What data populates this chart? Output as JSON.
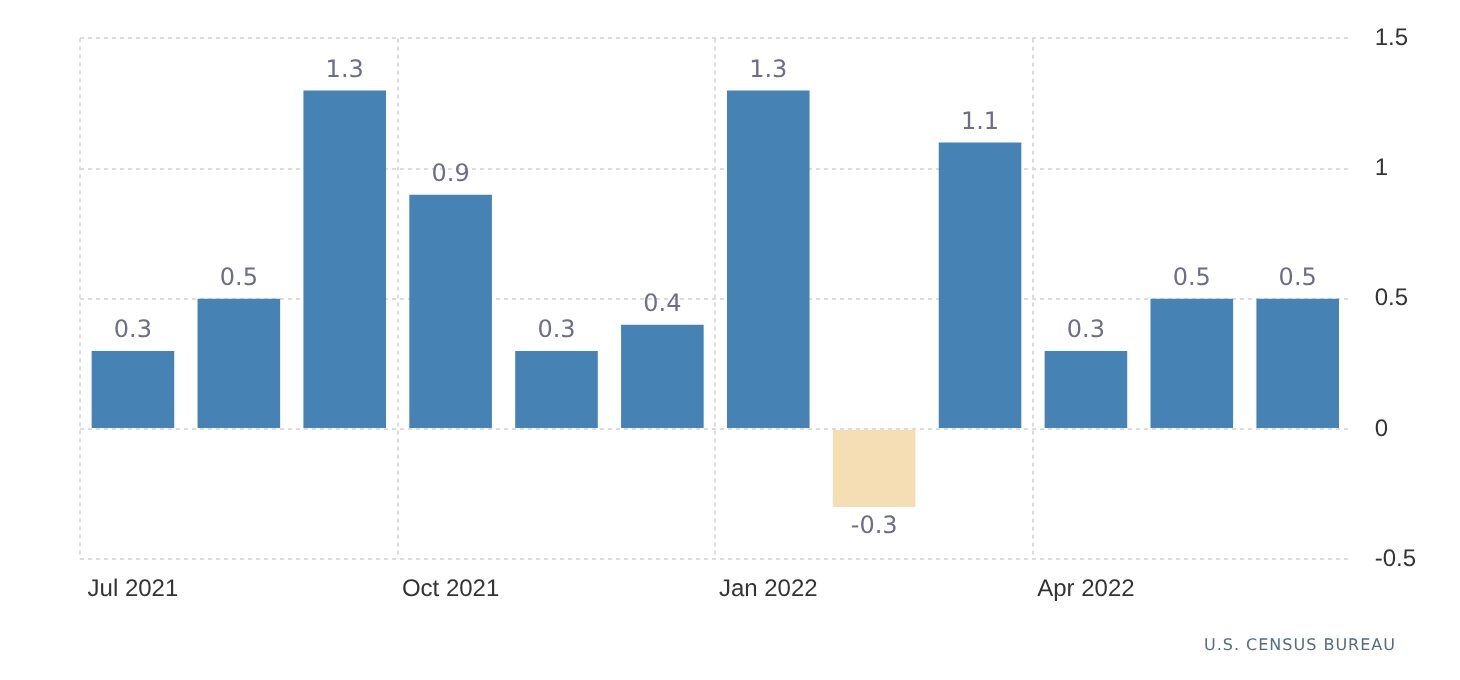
{
  "chart_data": {
    "type": "bar",
    "categories": [
      "Jul 2021",
      null,
      null,
      "Oct 2021",
      null,
      null,
      "Jan 2022",
      null,
      null,
      "Apr 2022",
      null,
      null
    ],
    "values": [
      0.3,
      0.5,
      1.3,
      0.9,
      0.3,
      0.4,
      1.3,
      -0.3,
      1.1,
      0.3,
      0.5,
      0.5
    ],
    "colors": [
      "#4682b4",
      "#4682b4",
      "#4682b4",
      "#4682b4",
      "#4682b4",
      "#4682b4",
      "#4682b4",
      "#f5deb3",
      "#4682b4",
      "#4682b4",
      "#4682b4",
      "#4682b4"
    ],
    "ylim": [
      -0.5,
      1.5
    ],
    "yticks": [
      -0.5,
      0,
      0.5,
      1,
      1.5
    ],
    "grid": true,
    "data_labels": true,
    "annotations": [
      "U.S. CENSUS BUREAU"
    ]
  }
}
